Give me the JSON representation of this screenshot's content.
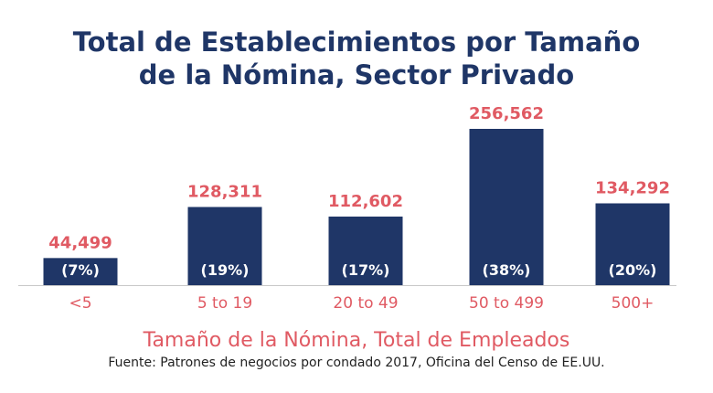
{
  "title_line1": "Total de Establecimientos por Tamaño",
  "title_line2": "de la Nómina, Sector Privado",
  "xlabel": "Tamaño de la Nómina, Total de Empleados",
  "source": "Fuente: Patrones de negocios por condado 2017, Oficina del Censo de EE.UU.",
  "colors": {
    "title": "#1f3667",
    "bar": "#1f3667",
    "accent": "#e05a63",
    "bar_text": "#ffffff",
    "axis": "#c8c8c8"
  },
  "chart_data": {
    "type": "bar",
    "title": "Total de Establecimientos por Tamaño de la Nómina, Sector Privado",
    "xlabel": "Tamaño de la Nómina, Total de Empleados",
    "ylabel": "",
    "ylim": [
      0,
      256562
    ],
    "grid": false,
    "legend": "none",
    "categories": [
      "<5",
      "5 to 19",
      "20 to 49",
      "50 to 499",
      "500+"
    ],
    "values": [
      44499,
      128311,
      112602,
      256562,
      134292
    ],
    "value_labels": [
      "44,499",
      "128,311",
      "112,602",
      "256,562",
      "134,292"
    ],
    "share_labels": [
      "(7%)",
      "(19%)",
      "(17%)",
      "(38%)",
      "(20%)"
    ]
  }
}
